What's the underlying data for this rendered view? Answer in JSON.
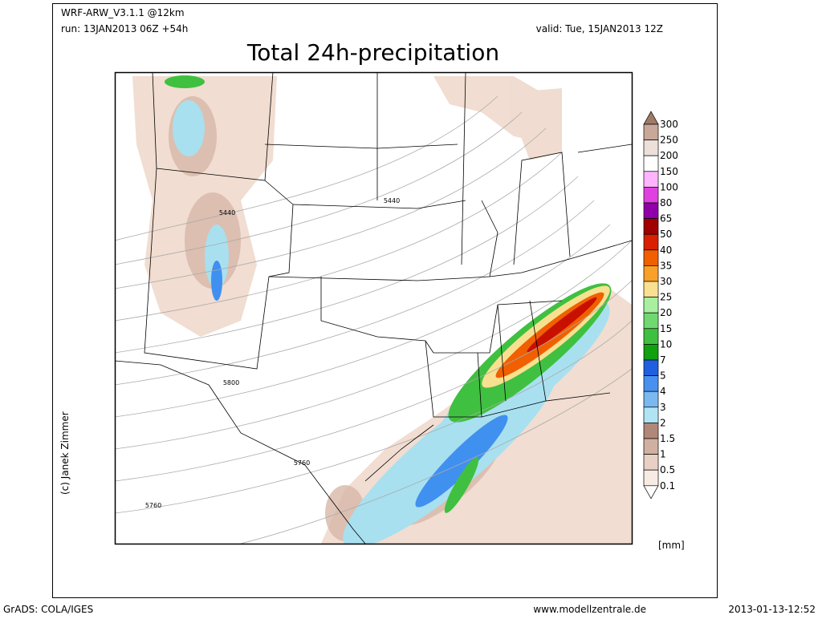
{
  "header": {
    "model": "WRF-ARW_V3.1.1 @12km",
    "run": "run: 13JAN2013 06Z +54h",
    "valid": "valid: Tue, 15JAN2013 12Z",
    "title": "Total 24h-precipitation"
  },
  "credit": "(c) Janek Zimmer",
  "contour_labels": [
    "5440",
    "5440",
    "5800",
    "5760",
    "5760"
  ],
  "colorbar": {
    "levels": [
      "300",
      "250",
      "200",
      "150",
      "100",
      "80",
      "65",
      "50",
      "40",
      "35",
      "30",
      "25",
      "20",
      "15",
      "10",
      "7",
      "5",
      "4",
      "3",
      "2",
      "1.5",
      "1",
      "0.5",
      "0.1"
    ],
    "colors": [
      "#a07a68",
      "#c8a898",
      "#ece0d8",
      "#ffffff",
      "#ffb4ff",
      "#e040e0",
      "#9000a8",
      "#a00000",
      "#d82000",
      "#f06000",
      "#f8a028",
      "#f8e090",
      "#a8f0a0",
      "#70d870",
      "#40c040",
      "#10a010",
      "#2060e0",
      "#4890f0",
      "#7ab8f0",
      "#b0e4f4",
      "#b08878",
      "#d0b0a0",
      "#e8d0c4",
      "#f8ebe4",
      "#ffffff"
    ],
    "unit": "[mm]"
  },
  "footer": {
    "left": "GrADS: COLA/IGES",
    "center": "www.modellzentrale.de",
    "right": "2013-01-13-12:52"
  }
}
